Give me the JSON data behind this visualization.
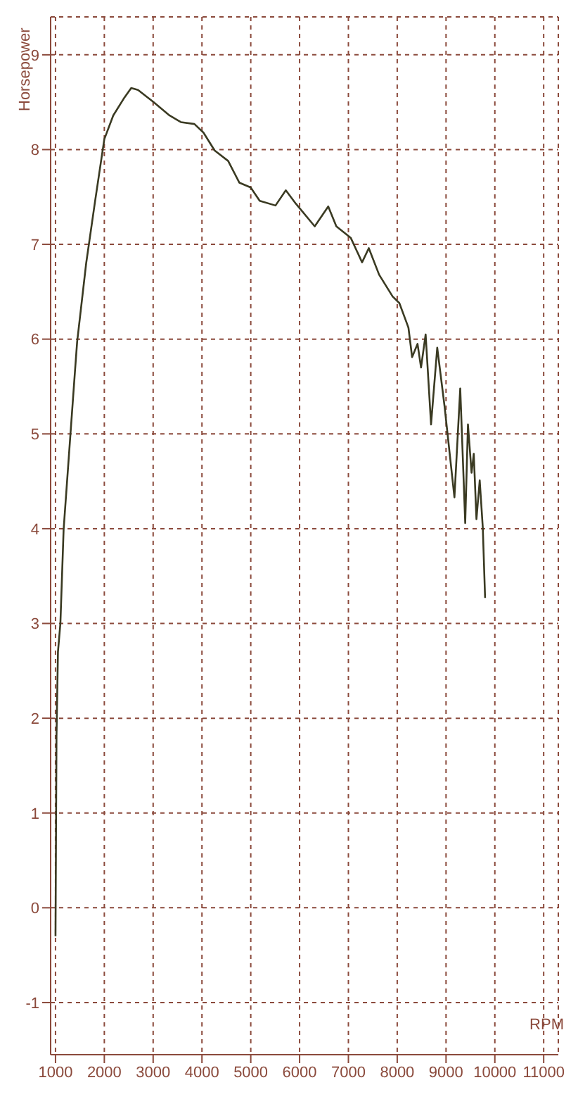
{
  "chart_data": {
    "type": "line",
    "xlabel": "RPM",
    "ylabel": "Horsepower",
    "x": [
      1000,
      1020,
      1050,
      1100,
      1166,
      1305,
      1397,
      1443,
      1628,
      1812,
      2000,
      2183,
      2413,
      2551,
      2690,
      3013,
      3335,
      3568,
      3845,
      4030,
      4260,
      4537,
      4767,
      4998,
      5183,
      5507,
      5718,
      5922,
      6310,
      6587,
      6753,
      7047,
      7280,
      7418,
      7629,
      7906,
      8044,
      8202,
      8230,
      8305,
      8416,
      8488,
      8582,
      8693,
      8820,
      8970,
      9172,
      9291,
      9393,
      9449,
      9523,
      9568,
      9623,
      9690,
      9753,
      9800
    ],
    "series": [
      {
        "color": "#3a3a22",
        "values": [
          -0.3,
          1.8,
          2.7,
          3.0,
          3.99,
          4.99,
          5.65,
          5.97,
          6.8,
          7.46,
          8.11,
          8.36,
          8.55,
          8.65,
          8.63,
          8.5,
          8.36,
          8.29,
          8.27,
          8.18,
          7.99,
          7.88,
          7.65,
          7.6,
          7.46,
          7.41,
          7.57,
          7.43,
          7.19,
          7.4,
          7.19,
          7.07,
          6.81,
          6.96,
          6.68,
          6.45,
          6.38,
          6.16,
          6.12,
          5.81,
          5.95,
          5.7,
          6.05,
          5.1,
          5.91,
          5.29,
          4.33,
          5.48,
          4.06,
          5.1,
          4.59,
          4.79,
          4.1,
          4.51,
          4.01,
          3.27
        ]
      }
    ],
    "xlim": [
      900,
      11300
    ],
    "xticks": [
      1000,
      2000,
      3000,
      4000,
      5000,
      6000,
      7000,
      8000,
      9000,
      10000,
      11000
    ],
    "ylim": [
      -1.55,
      9.4
    ],
    "yticks": [
      -1,
      0,
      1,
      2,
      3,
      4,
      5,
      6,
      7,
      8,
      9
    ],
    "grid": true,
    "marker": "none",
    "line_style": "solid"
  }
}
